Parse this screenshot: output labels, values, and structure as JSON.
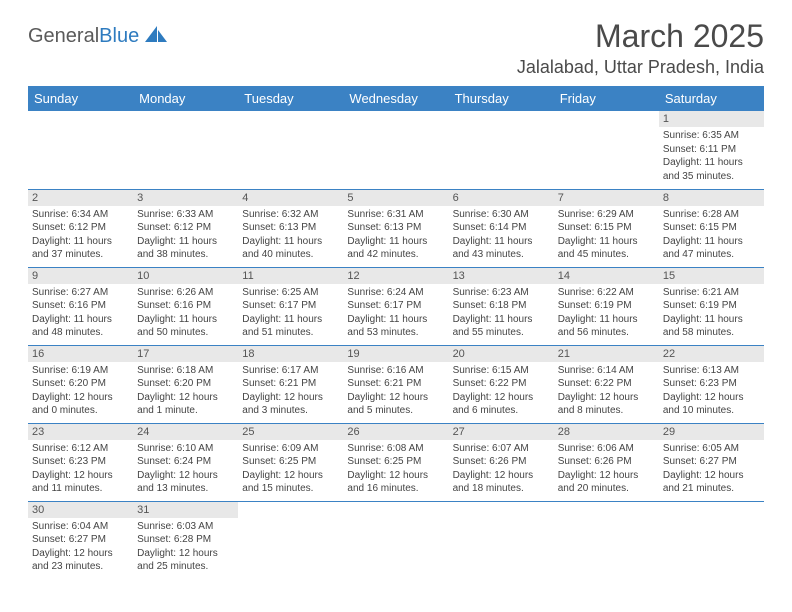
{
  "logo": {
    "text_general": "General",
    "text_blue": "Blue"
  },
  "title": "March 2025",
  "location": "Jalalabad, Uttar Pradesh, India",
  "weekdays": [
    "Sunday",
    "Monday",
    "Tuesday",
    "Wednesday",
    "Thursday",
    "Friday",
    "Saturday"
  ],
  "header_bg": "#3b82c4",
  "header_fg": "#ffffff",
  "daynum_bg": "#e8e8e8",
  "row_border": "#3b82c4",
  "cell_font_size": 10,
  "days": [
    {
      "n": 1,
      "sunrise": "6:35 AM",
      "sunset": "6:11 PM",
      "daylight": "11 hours and 35 minutes."
    },
    {
      "n": 2,
      "sunrise": "6:34 AM",
      "sunset": "6:12 PM",
      "daylight": "11 hours and 37 minutes."
    },
    {
      "n": 3,
      "sunrise": "6:33 AM",
      "sunset": "6:12 PM",
      "daylight": "11 hours and 38 minutes."
    },
    {
      "n": 4,
      "sunrise": "6:32 AM",
      "sunset": "6:13 PM",
      "daylight": "11 hours and 40 minutes."
    },
    {
      "n": 5,
      "sunrise": "6:31 AM",
      "sunset": "6:13 PM",
      "daylight": "11 hours and 42 minutes."
    },
    {
      "n": 6,
      "sunrise": "6:30 AM",
      "sunset": "6:14 PM",
      "daylight": "11 hours and 43 minutes."
    },
    {
      "n": 7,
      "sunrise": "6:29 AM",
      "sunset": "6:15 PM",
      "daylight": "11 hours and 45 minutes."
    },
    {
      "n": 8,
      "sunrise": "6:28 AM",
      "sunset": "6:15 PM",
      "daylight": "11 hours and 47 minutes."
    },
    {
      "n": 9,
      "sunrise": "6:27 AM",
      "sunset": "6:16 PM",
      "daylight": "11 hours and 48 minutes."
    },
    {
      "n": 10,
      "sunrise": "6:26 AM",
      "sunset": "6:16 PM",
      "daylight": "11 hours and 50 minutes."
    },
    {
      "n": 11,
      "sunrise": "6:25 AM",
      "sunset": "6:17 PM",
      "daylight": "11 hours and 51 minutes."
    },
    {
      "n": 12,
      "sunrise": "6:24 AM",
      "sunset": "6:17 PM",
      "daylight": "11 hours and 53 minutes."
    },
    {
      "n": 13,
      "sunrise": "6:23 AM",
      "sunset": "6:18 PM",
      "daylight": "11 hours and 55 minutes."
    },
    {
      "n": 14,
      "sunrise": "6:22 AM",
      "sunset": "6:19 PM",
      "daylight": "11 hours and 56 minutes."
    },
    {
      "n": 15,
      "sunrise": "6:21 AM",
      "sunset": "6:19 PM",
      "daylight": "11 hours and 58 minutes."
    },
    {
      "n": 16,
      "sunrise": "6:19 AM",
      "sunset": "6:20 PM",
      "daylight": "12 hours and 0 minutes."
    },
    {
      "n": 17,
      "sunrise": "6:18 AM",
      "sunset": "6:20 PM",
      "daylight": "12 hours and 1 minute."
    },
    {
      "n": 18,
      "sunrise": "6:17 AM",
      "sunset": "6:21 PM",
      "daylight": "12 hours and 3 minutes."
    },
    {
      "n": 19,
      "sunrise": "6:16 AM",
      "sunset": "6:21 PM",
      "daylight": "12 hours and 5 minutes."
    },
    {
      "n": 20,
      "sunrise": "6:15 AM",
      "sunset": "6:22 PM",
      "daylight": "12 hours and 6 minutes."
    },
    {
      "n": 21,
      "sunrise": "6:14 AM",
      "sunset": "6:22 PM",
      "daylight": "12 hours and 8 minutes."
    },
    {
      "n": 22,
      "sunrise": "6:13 AM",
      "sunset": "6:23 PM",
      "daylight": "12 hours and 10 minutes."
    },
    {
      "n": 23,
      "sunrise": "6:12 AM",
      "sunset": "6:23 PM",
      "daylight": "12 hours and 11 minutes."
    },
    {
      "n": 24,
      "sunrise": "6:10 AM",
      "sunset": "6:24 PM",
      "daylight": "12 hours and 13 minutes."
    },
    {
      "n": 25,
      "sunrise": "6:09 AM",
      "sunset": "6:25 PM",
      "daylight": "12 hours and 15 minutes."
    },
    {
      "n": 26,
      "sunrise": "6:08 AM",
      "sunset": "6:25 PM",
      "daylight": "12 hours and 16 minutes."
    },
    {
      "n": 27,
      "sunrise": "6:07 AM",
      "sunset": "6:26 PM",
      "daylight": "12 hours and 18 minutes."
    },
    {
      "n": 28,
      "sunrise": "6:06 AM",
      "sunset": "6:26 PM",
      "daylight": "12 hours and 20 minutes."
    },
    {
      "n": 29,
      "sunrise": "6:05 AM",
      "sunset": "6:27 PM",
      "daylight": "12 hours and 21 minutes."
    },
    {
      "n": 30,
      "sunrise": "6:04 AM",
      "sunset": "6:27 PM",
      "daylight": "12 hours and 23 minutes."
    },
    {
      "n": 31,
      "sunrise": "6:03 AM",
      "sunset": "6:28 PM",
      "daylight": "12 hours and 25 minutes."
    }
  ],
  "first_weekday_index": 6,
  "labels": {
    "sunrise": "Sunrise:",
    "sunset": "Sunset:",
    "daylight": "Daylight:"
  }
}
